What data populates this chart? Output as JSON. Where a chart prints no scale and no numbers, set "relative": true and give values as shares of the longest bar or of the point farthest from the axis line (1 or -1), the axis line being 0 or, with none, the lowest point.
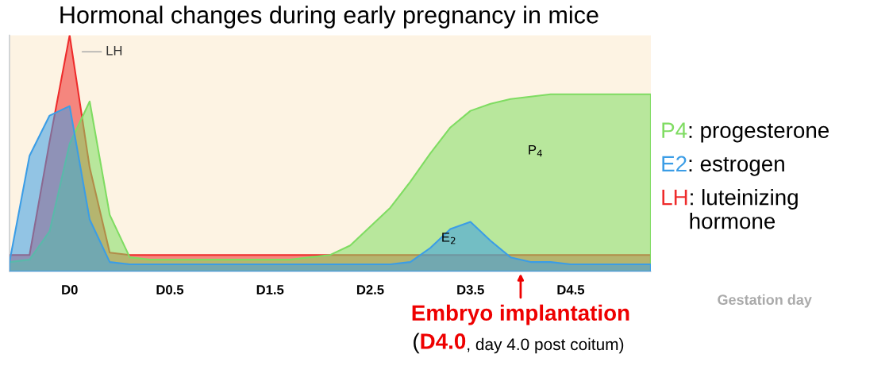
{
  "chart_data": {
    "type": "area",
    "relative": true,
    "title": "Hormonal changes during early pregnancy in mice",
    "xlabel": "Gestation day",
    "categories": [
      null,
      null,
      null,
      "D0",
      null,
      null,
      null,
      null,
      "D0.5",
      null,
      null,
      null,
      null,
      "D1.5",
      null,
      null,
      null,
      null,
      "D2.5",
      null,
      null,
      null,
      null,
      "D3.5",
      null,
      null,
      null,
      null,
      "D4.5",
      null,
      null,
      null,
      null
    ],
    "series": [
      {
        "name": "P4",
        "color": "#7fdc62",
        "values": [
          0.04,
          0.05,
          0.17,
          0.54,
          0.72,
          0.24,
          0.06,
          0.05,
          0.05,
          0.05,
          0.05,
          0.05,
          0.05,
          0.05,
          0.05,
          0.06,
          0.07,
          0.11,
          0.19,
          0.27,
          0.38,
          0.5,
          0.61,
          0.68,
          0.71,
          0.73,
          0.74,
          0.75,
          0.75,
          0.75,
          0.75,
          0.75,
          0.75
        ]
      },
      {
        "name": "E2",
        "color": "#3b9de6",
        "values": [
          0.04,
          0.49,
          0.66,
          0.7,
          0.22,
          0.04,
          0.03,
          0.03,
          0.03,
          0.03,
          0.03,
          0.03,
          0.03,
          0.03,
          0.03,
          0.03,
          0.03,
          0.03,
          0.03,
          0.03,
          0.04,
          0.1,
          0.18,
          0.21,
          0.13,
          0.06,
          0.04,
          0.04,
          0.03,
          0.03,
          0.03,
          0.03,
          0.03
        ]
      },
      {
        "name": "LH",
        "color": "#ee2b2b",
        "values": [
          0.07,
          0.07,
          0.55,
          1.0,
          0.44,
          0.08,
          0.07,
          0.07,
          0.07,
          0.07,
          0.07,
          0.07,
          0.07,
          0.07,
          0.07,
          0.07,
          0.07,
          0.07,
          0.07,
          0.07,
          0.07,
          0.07,
          0.07,
          0.07,
          0.07,
          0.07,
          0.07,
          0.07,
          0.07,
          0.07,
          0.07,
          0.07,
          0.07
        ]
      }
    ],
    "annotations": [
      ": progesterone",
      ": estrogen",
      ": luteinizing\nhormone",
      "LH",
      "P$_{4}$",
      "E$_{2}$",
      "Embryo implantation",
      "(",
      "D4.0",
      ", day 4.0 post coitum)"
    ]
  }
}
